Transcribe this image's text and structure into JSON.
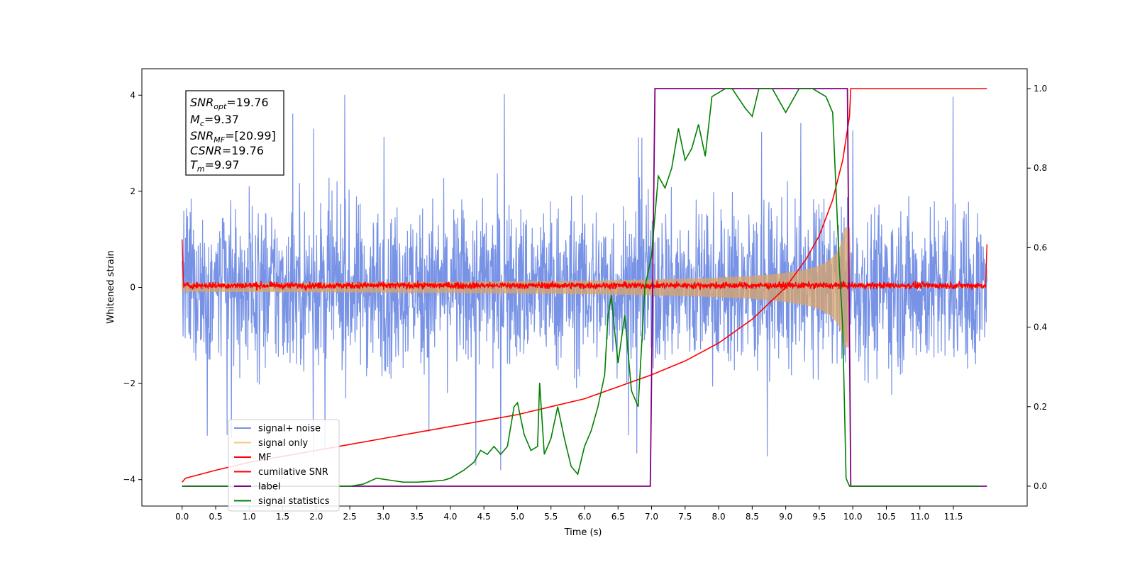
{
  "chart_data": {
    "type": "line",
    "xlabel": "Time (s)",
    "ylabel": "Whitened strain",
    "xlim": [
      -0.6,
      12.6
    ],
    "ylim": [
      -4.55,
      4.55
    ],
    "y2lim": [
      -0.05,
      1.05
    ],
    "x_ticks": [
      "0.0",
      "0.5",
      "1.0",
      "1.5",
      "2.0",
      "2.5",
      "3.0",
      "3.5",
      "4.0",
      "4.5",
      "5.0",
      "5.5",
      "6.0",
      "6.5",
      "7.0",
      "7.5",
      "8.0",
      "8.5",
      "9.0",
      "9.5",
      "10.0",
      "10.5",
      "11.0",
      "11.5"
    ],
    "y_ticks": [
      "4",
      "2",
      "0",
      "−2",
      "−4"
    ],
    "y2_ticks": [
      "1.0",
      "0.8",
      "0.6",
      "0.4",
      "0.2",
      "0.0"
    ],
    "info_box": {
      "snr_opt": {
        "main": "SNR",
        "sub": "opt",
        "value": "=19.76"
      },
      "mc": {
        "main": "M",
        "sub": "c",
        "value": "=9.37"
      },
      "snr_mf": {
        "main": "SNR",
        "sub": "MF",
        "value": "=[20.99]"
      },
      "csnr": {
        "main": "CSNR",
        "sub": "",
        "value": "=19.76"
      },
      "tm": {
        "main": "T",
        "sub": "m",
        "value": "=9.97"
      }
    },
    "legend_placement": "lower-left",
    "series": [
      {
        "name": "signal+ noise",
        "color": "#7893e6",
        "axis": "left",
        "description_shape": "noise band ~[-2.5, 2.5] with spikes to ±4"
      },
      {
        "name": "signal only",
        "color": "#f6c77a",
        "axis": "left",
        "description_shape": "chirp growing to amplitude ~1.2 at t=9.9 then 0"
      },
      {
        "name": "MF",
        "color": "#ff0000",
        "axis": "left",
        "description_shape": "near zero with noise, peaks 1.0 at t=0 and 12"
      },
      {
        "name": "cumilative SNR",
        "color": "#ff0000",
        "axis": "right",
        "x": [
          0.0,
          0.05,
          0.5,
          1.0,
          1.5,
          2.0,
          2.5,
          3.0,
          3.5,
          4.0,
          4.5,
          5.0,
          5.5,
          6.0,
          6.5,
          7.0,
          7.5,
          8.0,
          8.5,
          9.0,
          9.3,
          9.5,
          9.7,
          9.85,
          9.95,
          9.97,
          10.0,
          12.0
        ],
        "y": [
          0.01,
          0.02,
          0.04,
          0.06,
          0.075,
          0.09,
          0.105,
          0.12,
          0.135,
          0.15,
          0.165,
          0.18,
          0.2,
          0.22,
          0.25,
          0.28,
          0.315,
          0.36,
          0.42,
          0.5,
          0.57,
          0.63,
          0.72,
          0.82,
          0.93,
          1.0,
          1.0,
          1.0
        ]
      },
      {
        "name": "label",
        "color": "#800080",
        "axis": "right",
        "x": [
          0.0,
          6.98,
          7.05,
          9.92,
          9.97,
          12.0
        ],
        "y": [
          0.0,
          0.0,
          1.0,
          1.0,
          0.0,
          0.0
        ]
      },
      {
        "name": "signal statistics",
        "color": "#008000",
        "axis": "right",
        "x": [
          0.0,
          0.5,
          1.0,
          1.5,
          2.0,
          2.5,
          2.7,
          2.9,
          3.1,
          3.3,
          3.5,
          3.7,
          3.9,
          4.0,
          4.2,
          4.35,
          4.45,
          4.55,
          4.65,
          4.75,
          4.85,
          4.95,
          5.0,
          5.1,
          5.2,
          5.3,
          5.33,
          5.4,
          5.5,
          5.6,
          5.7,
          5.8,
          5.9,
          6.0,
          6.1,
          6.2,
          6.3,
          6.35,
          6.4,
          6.45,
          6.5,
          6.6,
          6.7,
          6.8,
          6.9,
          7.0,
          7.1,
          7.2,
          7.3,
          7.4,
          7.5,
          7.6,
          7.7,
          7.8,
          7.9,
          8.0,
          8.1,
          8.2,
          8.4,
          8.5,
          8.6,
          8.8,
          9.0,
          9.2,
          9.4,
          9.6,
          9.7,
          9.8,
          9.85,
          9.9,
          9.95,
          10.0,
          10.5,
          11.0,
          11.5,
          11.9
        ],
        "y": [
          0.0,
          0.0,
          0.0,
          0.0,
          0.0,
          0.0,
          0.005,
          0.02,
          0.015,
          0.01,
          0.01,
          0.012,
          0.015,
          0.02,
          0.04,
          0.06,
          0.09,
          0.08,
          0.1,
          0.08,
          0.1,
          0.2,
          0.21,
          0.13,
          0.09,
          0.1,
          0.26,
          0.08,
          0.12,
          0.2,
          0.12,
          0.05,
          0.03,
          0.1,
          0.14,
          0.2,
          0.28,
          0.43,
          0.48,
          0.39,
          0.31,
          0.43,
          0.24,
          0.2,
          0.5,
          0.58,
          0.78,
          0.75,
          0.8,
          0.9,
          0.82,
          0.85,
          0.91,
          0.83,
          0.98,
          0.99,
          1.0,
          1.0,
          0.95,
          0.93,
          1.0,
          1.0,
          0.94,
          1.0,
          1.0,
          0.98,
          0.94,
          0.55,
          0.4,
          0.02,
          0.0,
          0.0,
          0.0,
          0.0,
          0.0,
          0.0
        ]
      }
    ]
  }
}
